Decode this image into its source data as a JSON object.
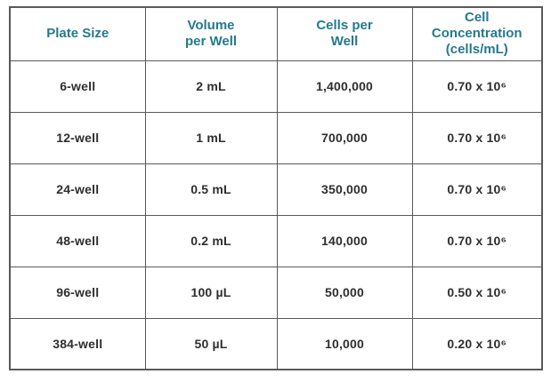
{
  "colors": {
    "header_text": "#26798c",
    "body_text": "#2e2e30",
    "border": "#58595b",
    "background": "#ffffff"
  },
  "table": {
    "columns": [
      "Plate Size",
      "Volume\nper Well",
      "Cells per\nWell",
      "Cell\nConcentration\n(cells/mL)"
    ],
    "rows": [
      [
        "6-well",
        "2 mL",
        "1,400,000",
        "0.70 x 10⁶"
      ],
      [
        "12-well",
        "1 mL",
        "700,000",
        "0.70 x 10⁶"
      ],
      [
        "24-well",
        "0.5 mL",
        "350,000",
        "0.70 x 10⁶"
      ],
      [
        "48-well",
        "0.2 mL",
        "140,000",
        "0.70 x 10⁶"
      ],
      [
        "96-well",
        "100 µL",
        "50,000",
        "0.50 x 10⁶"
      ],
      [
        "384-well",
        "50 µL",
        "10,000",
        "0.20 x 10⁶"
      ]
    ]
  }
}
